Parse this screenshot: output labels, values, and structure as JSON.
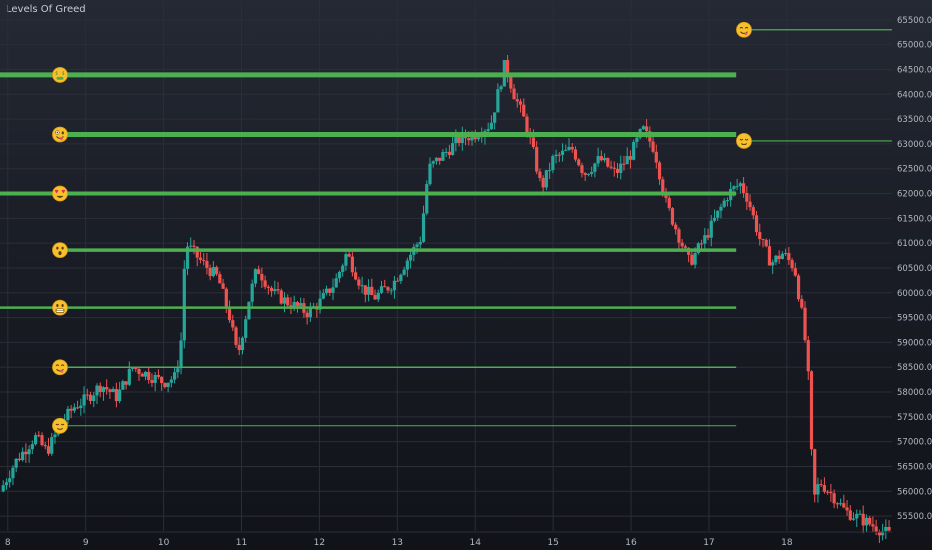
{
  "chart_title": "Levels Of Greed",
  "colors": {
    "up": "#26a69a",
    "down": "#ef5350",
    "level": "#4caf50",
    "emoji_face": "#f7c12e"
  },
  "chart_data": {
    "type": "candlestick",
    "title": "Levels Of Greed",
    "ylim": [
      55200,
      65900
    ],
    "y_ticks": [
      "65500.00",
      "65000.00",
      "64500.00",
      "64000.00",
      "63500.00",
      "63000.00",
      "62500.00",
      "62000.00",
      "61500.00",
      "61000.00",
      "60500.00",
      "60000.00",
      "59500.00",
      "59000.00",
      "58500.00",
      "58000.00",
      "57500.00",
      "57000.00",
      "56500.00",
      "56000.00",
      "55500.00"
    ],
    "x_ticks": [
      "8",
      "9",
      "10",
      "11",
      "12",
      "13",
      "14",
      "15",
      "16",
      "17",
      "18"
    ],
    "x_tick_days": [
      8,
      9,
      10,
      11,
      12,
      13,
      14,
      15,
      16,
      17,
      18
    ],
    "xlim": [
      7.9,
      19.35
    ],
    "price_path": [
      [
        7.9,
        56000
      ],
      [
        8.1,
        56600
      ],
      [
        8.35,
        57100
      ],
      [
        8.5,
        56800
      ],
      [
        8.7,
        57400
      ],
      [
        8.85,
        57700
      ],
      [
        9.0,
        57850
      ],
      [
        9.2,
        58150
      ],
      [
        9.4,
        57900
      ],
      [
        9.6,
        58500
      ],
      [
        9.8,
        58350
      ],
      [
        10.0,
        58200
      ],
      [
        10.15,
        58300
      ],
      [
        10.22,
        58900
      ],
      [
        10.28,
        61000
      ],
      [
        10.5,
        60600
      ],
      [
        10.7,
        60300
      ],
      [
        10.85,
        59500
      ],
      [
        10.95,
        58700
      ],
      [
        11.1,
        59900
      ],
      [
        11.2,
        60500
      ],
      [
        11.4,
        60000
      ],
      [
        11.6,
        59800
      ],
      [
        11.85,
        59600
      ],
      [
        12.0,
        59800
      ],
      [
        12.2,
        60200
      ],
      [
        12.35,
        60800
      ],
      [
        12.55,
        60100
      ],
      [
        12.7,
        59900
      ],
      [
        12.95,
        60200
      ],
      [
        13.1,
        60600
      ],
      [
        13.3,
        61100
      ],
      [
        13.4,
        62500
      ],
      [
        13.6,
        62800
      ],
      [
        13.8,
        63100
      ],
      [
        14.0,
        63200
      ],
      [
        14.2,
        63400
      ],
      [
        14.38,
        64600
      ],
      [
        14.5,
        64000
      ],
      [
        14.65,
        63400
      ],
      [
        14.75,
        62800
      ],
      [
        14.85,
        62100
      ],
      [
        15.0,
        62700
      ],
      [
        15.25,
        62900
      ],
      [
        15.4,
        62400
      ],
      [
        15.6,
        62700
      ],
      [
        15.8,
        62400
      ],
      [
        16.0,
        62800
      ],
      [
        16.15,
        63300
      ],
      [
        16.3,
        62900
      ],
      [
        16.45,
        61800
      ],
      [
        16.6,
        61200
      ],
      [
        16.75,
        60600
      ],
      [
        16.95,
        61100
      ],
      [
        17.15,
        61700
      ],
      [
        17.25,
        62000
      ],
      [
        17.4,
        62200
      ],
      [
        17.5,
        61900
      ],
      [
        17.65,
        61100
      ],
      [
        17.8,
        60600
      ],
      [
        17.95,
        60800
      ],
      [
        18.1,
        60500
      ],
      [
        18.22,
        59300
      ],
      [
        18.28,
        58200
      ],
      [
        18.34,
        55800
      ],
      [
        18.42,
        56200
      ],
      [
        18.6,
        55900
      ],
      [
        18.75,
        55600
      ],
      [
        19.0,
        55400
      ],
      [
        19.35,
        55100
      ]
    ],
    "levels": [
      {
        "price": 65300,
        "emoji": "yum",
        "stroke": 1.2,
        "x_start": 17.45,
        "x_end": 19.35,
        "emoji_day": 17.45
      },
      {
        "price": 64390,
        "emoji": "money-mouth",
        "stroke": 5,
        "x_start": 7.9,
        "x_end": 17.35,
        "emoji_day": 8.67
      },
      {
        "price": 63190,
        "emoji": "zany",
        "stroke": 5,
        "x_start": 8.67,
        "x_end": 17.35,
        "emoji_day": 8.67
      },
      {
        "price": 63060,
        "emoji": "relieved",
        "stroke": 1.2,
        "x_start": 17.45,
        "x_end": 19.35,
        "emoji_day": 17.45
      },
      {
        "price": 62000,
        "emoji": "heart-eyes",
        "stroke": 4,
        "x_start": 7.9,
        "x_end": 17.35,
        "emoji_day": 8.67
      },
      {
        "price": 60860,
        "emoji": "hushed",
        "stroke": 3.5,
        "x_start": 8.67,
        "x_end": 17.35,
        "emoji_day": 8.67
      },
      {
        "price": 59700,
        "emoji": "grimacing",
        "stroke": 2.5,
        "x_start": 7.9,
        "x_end": 17.35,
        "emoji_day": 8.67
      },
      {
        "price": 58500,
        "emoji": "yum",
        "stroke": 1.5,
        "x_start": 8.67,
        "x_end": 17.35,
        "emoji_day": 8.67
      },
      {
        "price": 57320,
        "emoji": "relieved",
        "stroke": 1,
        "x_start": 8.67,
        "x_end": 17.35,
        "emoji_day": 8.67
      }
    ]
  }
}
